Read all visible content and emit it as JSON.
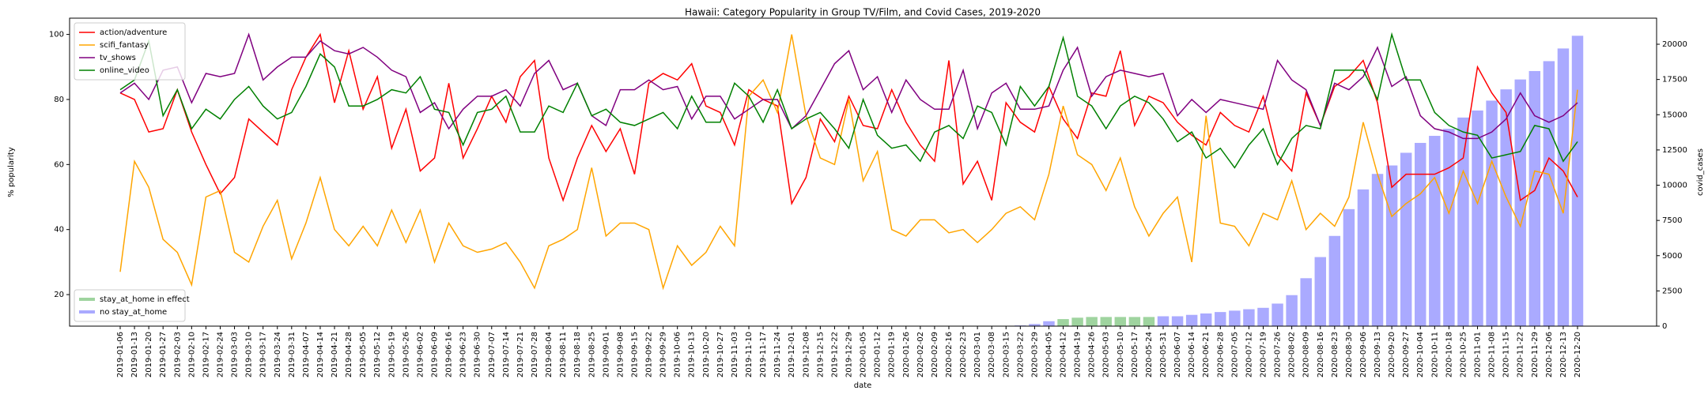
{
  "chart_data": {
    "type": "line",
    "title": "Hawaii: Category Popularity in Group TV/Film, and Covid Cases, 2019-2020",
    "xlabel": "date",
    "ylabel": "% popularity",
    "y2label": "covid_cases",
    "categories": [
      "2019-01-06",
      "2019-01-13",
      "2019-01-20",
      "2019-01-27",
      "2019-02-03",
      "2019-02-10",
      "2019-02-17",
      "2019-02-24",
      "2019-03-03",
      "2019-03-10",
      "2019-03-17",
      "2019-03-24",
      "2019-03-31",
      "2019-04-07",
      "2019-04-14",
      "2019-04-21",
      "2019-04-28",
      "2019-05-05",
      "2019-05-12",
      "2019-05-19",
      "2019-05-26",
      "2019-06-02",
      "2019-06-09",
      "2019-06-16",
      "2019-06-23",
      "2019-06-30",
      "2019-07-07",
      "2019-07-14",
      "2019-07-21",
      "2019-07-28",
      "2019-08-04",
      "2019-08-11",
      "2019-08-18",
      "2019-08-25",
      "2019-09-01",
      "2019-09-08",
      "2019-09-15",
      "2019-09-22",
      "2019-09-29",
      "2019-10-06",
      "2019-10-13",
      "2019-10-20",
      "2019-10-27",
      "2019-11-03",
      "2019-11-10",
      "2019-11-17",
      "2019-11-24",
      "2019-12-01",
      "2019-12-08",
      "2019-12-15",
      "2019-12-22",
      "2019-12-29",
      "2020-01-05",
      "2020-01-12",
      "2020-01-19",
      "2020-01-26",
      "2020-02-02",
      "2020-02-09",
      "2020-02-16",
      "2020-02-23",
      "2020-03-01",
      "2020-03-08",
      "2020-03-15",
      "2020-03-22",
      "2020-03-29",
      "2020-04-05",
      "2020-04-12",
      "2020-04-19",
      "2020-04-26",
      "2020-05-03",
      "2020-05-10",
      "2020-05-17",
      "2020-05-24",
      "2020-05-31",
      "2020-06-07",
      "2020-06-14",
      "2020-06-21",
      "2020-06-28",
      "2020-07-05",
      "2020-07-12",
      "2020-07-19",
      "2020-07-26",
      "2020-08-02",
      "2020-08-09",
      "2020-08-16",
      "2020-08-23",
      "2020-08-30",
      "2020-09-06",
      "2020-09-13",
      "2020-09-20",
      "2020-09-27",
      "2020-10-04",
      "2020-10-11",
      "2020-10-18",
      "2020-10-25",
      "2020-11-01",
      "2020-11-08",
      "2020-11-15",
      "2020-11-22",
      "2020-11-29",
      "2020-12-06",
      "2020-12-13",
      "2020-12-20"
    ],
    "series": [
      {
        "name": "action/adventure",
        "color": "#ff0000",
        "values": [
          82,
          80,
          70,
          71,
          83,
          70,
          60,
          51,
          56,
          74,
          70,
          66,
          83,
          93,
          100,
          79,
          95,
          77,
          87,
          65,
          77,
          58,
          62,
          85,
          62,
          71,
          81,
          73,
          87,
          92,
          62,
          49,
          62,
          72,
          64,
          71,
          57,
          85,
          88,
          86,
          91,
          78,
          76,
          66,
          83,
          80,
          78,
          48,
          56,
          74,
          67,
          81,
          72,
          71,
          83,
          73,
          66,
          61,
          92,
          54,
          61,
          49,
          79,
          73,
          70,
          84,
          74,
          68,
          82,
          81,
          95,
          72,
          81,
          79,
          73,
          69,
          66,
          76,
          72,
          70,
          81,
          63,
          58,
          82,
          72,
          84,
          87,
          92,
          79,
          53,
          57,
          57,
          57,
          59,
          62,
          90,
          82,
          76,
          49,
          52,
          62,
          58,
          50
        ]
      },
      {
        "name": "scifi_fantasy",
        "color": "#ffa500",
        "values": [
          27,
          61,
          53,
          37,
          33,
          23,
          50,
          52,
          33,
          30,
          41,
          49,
          31,
          42,
          56,
          40,
          35,
          41,
          35,
          46,
          36,
          46,
          30,
          42,
          35,
          33,
          34,
          36,
          30,
          22,
          35,
          37,
          40,
          59,
          38,
          42,
          42,
          40,
          22,
          35,
          29,
          33,
          41,
          35,
          81,
          86,
          76,
          100,
          75,
          62,
          60,
          80,
          55,
          64,
          40,
          38,
          43,
          43,
          39,
          40,
          36,
          40,
          45,
          47,
          43,
          57,
          78,
          63,
          60,
          52,
          62,
          47,
          38,
          45,
          50,
          30,
          75,
          42,
          41,
          35,
          45,
          43,
          55,
          40,
          45,
          41,
          50,
          73,
          57,
          44,
          48,
          51,
          56,
          45,
          58,
          48,
          61,
          50,
          41,
          58,
          57,
          45,
          83
        ]
      },
      {
        "name": "tv_shows",
        "color": "#800080",
        "values": [
          82,
          85,
          80,
          89,
          90,
          79,
          88,
          87,
          88,
          100,
          86,
          90,
          93,
          93,
          98,
          95,
          94,
          96,
          93,
          89,
          87,
          76,
          79,
          71,
          77,
          81,
          81,
          83,
          78,
          88,
          92,
          83,
          85,
          75,
          72,
          83,
          83,
          86,
          83,
          84,
          74,
          81,
          81,
          74,
          77,
          80,
          80,
          71,
          75,
          83,
          91,
          95,
          83,
          87,
          76,
          86,
          80,
          77,
          77,
          89,
          71,
          82,
          85,
          77,
          77,
          78,
          89,
          96,
          81,
          87,
          89,
          88,
          87,
          88,
          75,
          80,
          76,
          80,
          79,
          78,
          77,
          92,
          86,
          83,
          72,
          85,
          83,
          87,
          96,
          84,
          87,
          75,
          71,
          70,
          68,
          68,
          70,
          74,
          82,
          75,
          73,
          75,
          79
        ]
      },
      {
        "name": "online_video",
        "color": "#008000",
        "values": [
          83,
          86,
          98,
          75,
          83,
          71,
          77,
          74,
          80,
          84,
          78,
          74,
          76,
          84,
          94,
          90,
          78,
          78,
          80,
          83,
          82,
          87,
          77,
          76,
          66,
          76,
          77,
          81,
          70,
          70,
          78,
          76,
          85,
          75,
          77,
          73,
          72,
          74,
          76,
          71,
          81,
          73,
          73,
          85,
          81,
          73,
          83,
          71,
          74,
          76,
          71,
          65,
          80,
          69,
          65,
          66,
          61,
          70,
          72,
          68,
          78,
          76,
          66,
          84,
          78,
          84,
          99,
          81,
          78,
          71,
          78,
          81,
          79,
          74,
          67,
          70,
          62,
          65,
          59,
          66,
          71,
          60,
          68,
          72,
          71,
          89,
          89,
          89,
          80,
          100,
          86,
          86,
          76,
          72,
          70,
          69,
          62,
          63,
          64,
          72,
          71,
          61,
          67
        ]
      }
    ],
    "bar_series": [
      {
        "name": "stay_at_home in effect",
        "color": "#9fd49f",
        "axis": "y2",
        "values": [
          null,
          null,
          null,
          null,
          null,
          null,
          null,
          null,
          null,
          null,
          null,
          null,
          null,
          null,
          null,
          null,
          null,
          null,
          null,
          null,
          null,
          null,
          null,
          null,
          null,
          null,
          null,
          null,
          null,
          null,
          null,
          null,
          null,
          null,
          null,
          null,
          null,
          null,
          null,
          null,
          null,
          null,
          null,
          null,
          null,
          null,
          null,
          null,
          null,
          null,
          null,
          null,
          null,
          null,
          null,
          null,
          null,
          null,
          null,
          null,
          null,
          null,
          null,
          null,
          null,
          null,
          500,
          600,
          650,
          650,
          650,
          650,
          650,
          null,
          null,
          null,
          null,
          null,
          null,
          null,
          null,
          null,
          null,
          null,
          null,
          null,
          null,
          null,
          null,
          null,
          null,
          null,
          null,
          null,
          null,
          null,
          null,
          null,
          null,
          null,
          null,
          null,
          null
        ]
      },
      {
        "name": "no stay_at_home",
        "color": "#aaaaff",
        "axis": "y2",
        "values": [
          null,
          null,
          null,
          null,
          null,
          null,
          null,
          null,
          null,
          null,
          null,
          null,
          null,
          null,
          null,
          null,
          null,
          null,
          null,
          null,
          null,
          null,
          null,
          null,
          null,
          null,
          null,
          null,
          null,
          null,
          null,
          null,
          null,
          null,
          null,
          null,
          null,
          null,
          null,
          null,
          null,
          null,
          null,
          null,
          null,
          null,
          null,
          null,
          null,
          null,
          null,
          null,
          null,
          null,
          null,
          null,
          null,
          null,
          null,
          null,
          null,
          null,
          null,
          50,
          150,
          350,
          null,
          null,
          null,
          null,
          null,
          null,
          null,
          700,
          700,
          800,
          900,
          1000,
          1100,
          1200,
          1300,
          1600,
          2200,
          3400,
          4900,
          6400,
          8300,
          9700,
          10800,
          11400,
          12300,
          13000,
          13500,
          14000,
          14800,
          15300,
          16000,
          16800,
          17500,
          18100,
          18800,
          19700,
          20600
        ]
      }
    ],
    "ylim": [
      10.3,
      105
    ],
    "yticks": [
      20,
      40,
      60,
      80,
      100
    ],
    "y2lim": [
      0,
      21850
    ],
    "y2ticks": [
      0,
      2500,
      5000,
      7500,
      10000,
      12500,
      15000,
      17500,
      20000
    ],
    "legend": "upper left",
    "bar_legend": "lower left"
  }
}
